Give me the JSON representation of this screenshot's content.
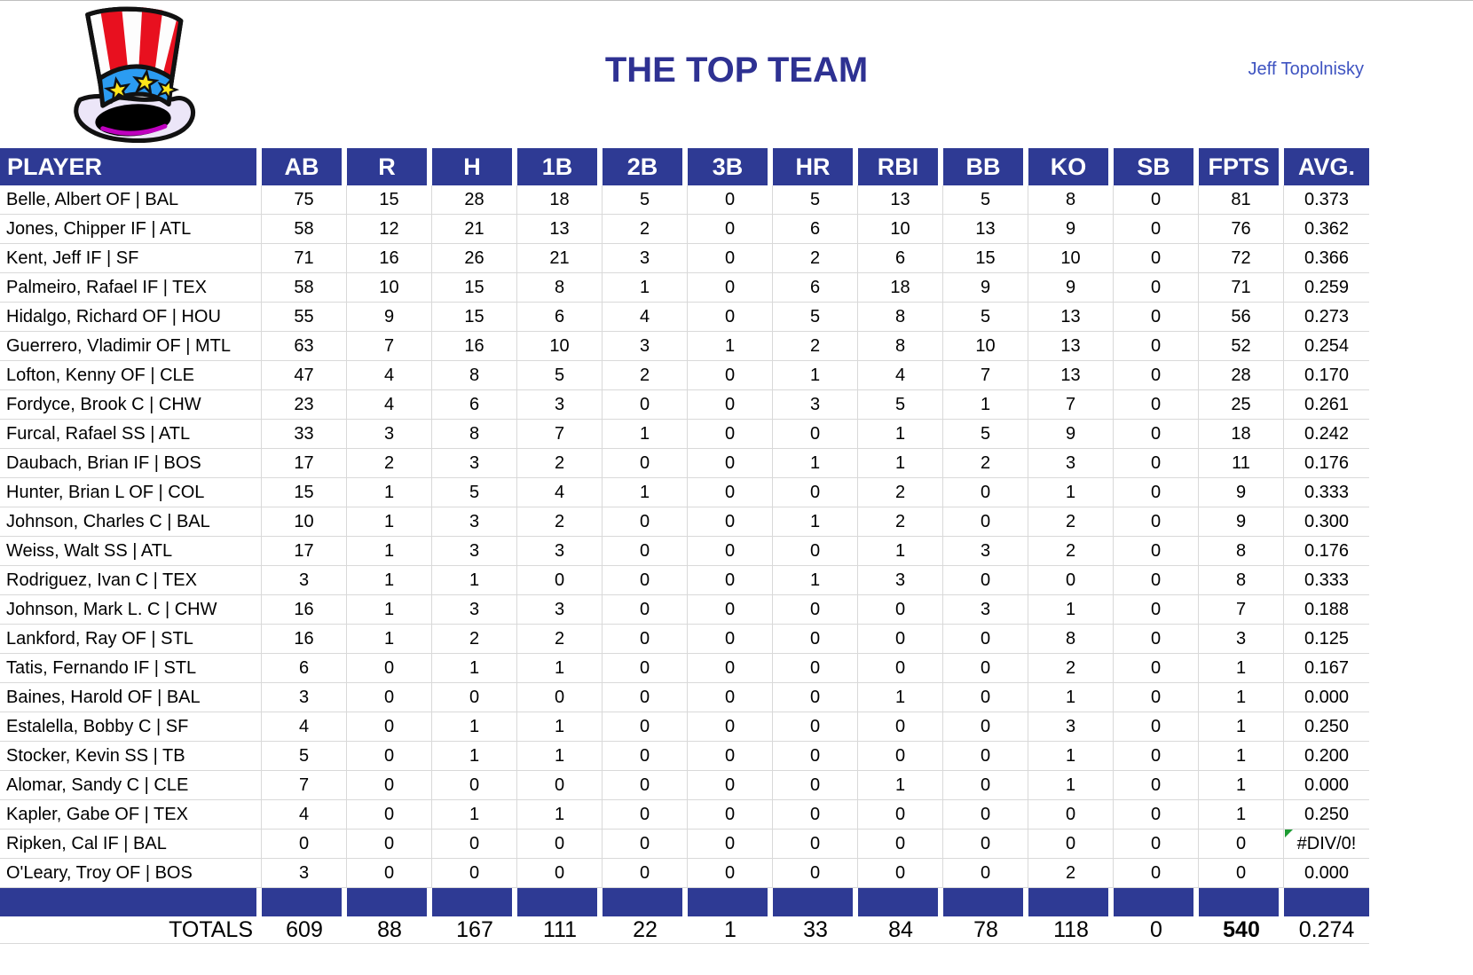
{
  "header": {
    "title": "THE TOP TEAM",
    "owner": "Jeff Topolnisky",
    "logo": "uncle-sam-hat"
  },
  "table": {
    "columns": [
      "PLAYER",
      "AB",
      "R",
      "H",
      "1B",
      "2B",
      "3B",
      "HR",
      "RBI",
      "BB",
      "KO",
      "SB",
      "FPTS",
      "AVG."
    ],
    "rows": [
      [
        "Belle, Albert OF | BAL",
        "75",
        "15",
        "28",
        "18",
        "5",
        "0",
        "5",
        "13",
        "5",
        "8",
        "0",
        "81",
        "0.373"
      ],
      [
        "Jones, Chipper IF | ATL",
        "58",
        "12",
        "21",
        "13",
        "2",
        "0",
        "6",
        "10",
        "13",
        "9",
        "0",
        "76",
        "0.362"
      ],
      [
        "Kent, Jeff IF | SF",
        "71",
        "16",
        "26",
        "21",
        "3",
        "0",
        "2",
        "6",
        "15",
        "10",
        "0",
        "72",
        "0.366"
      ],
      [
        "Palmeiro, Rafael IF | TEX",
        "58",
        "10",
        "15",
        "8",
        "1",
        "0",
        "6",
        "18",
        "9",
        "9",
        "0",
        "71",
        "0.259"
      ],
      [
        "Hidalgo, Richard OF | HOU",
        "55",
        "9",
        "15",
        "6",
        "4",
        "0",
        "5",
        "8",
        "5",
        "13",
        "0",
        "56",
        "0.273"
      ],
      [
        "Guerrero, Vladimir OF | MTL",
        "63",
        "7",
        "16",
        "10",
        "3",
        "1",
        "2",
        "8",
        "10",
        "13",
        "0",
        "52",
        "0.254"
      ],
      [
        "Lofton, Kenny OF | CLE",
        "47",
        "4",
        "8",
        "5",
        "2",
        "0",
        "1",
        "4",
        "7",
        "13",
        "0",
        "28",
        "0.170"
      ],
      [
        "Fordyce, Brook C | CHW",
        "23",
        "4",
        "6",
        "3",
        "0",
        "0",
        "3",
        "5",
        "1",
        "7",
        "0",
        "25",
        "0.261"
      ],
      [
        "Furcal, Rafael SS | ATL",
        "33",
        "3",
        "8",
        "7",
        "1",
        "0",
        "0",
        "1",
        "5",
        "9",
        "0",
        "18",
        "0.242"
      ],
      [
        "Daubach, Brian IF | BOS",
        "17",
        "2",
        "3",
        "2",
        "0",
        "0",
        "1",
        "1",
        "2",
        "3",
        "0",
        "11",
        "0.176"
      ],
      [
        "Hunter, Brian L OF | COL",
        "15",
        "1",
        "5",
        "4",
        "1",
        "0",
        "0",
        "2",
        "0",
        "1",
        "0",
        "9",
        "0.333"
      ],
      [
        "Johnson, Charles C | BAL",
        "10",
        "1",
        "3",
        "2",
        "0",
        "0",
        "1",
        "2",
        "0",
        "2",
        "0",
        "9",
        "0.300"
      ],
      [
        "Weiss, Walt SS | ATL",
        "17",
        "1",
        "3",
        "3",
        "0",
        "0",
        "0",
        "1",
        "3",
        "2",
        "0",
        "8",
        "0.176"
      ],
      [
        "Rodriguez, Ivan C | TEX",
        "3",
        "1",
        "1",
        "0",
        "0",
        "0",
        "1",
        "3",
        "0",
        "0",
        "0",
        "8",
        "0.333"
      ],
      [
        "Johnson, Mark L. C | CHW",
        "16",
        "1",
        "3",
        "3",
        "0",
        "0",
        "0",
        "0",
        "3",
        "1",
        "0",
        "7",
        "0.188"
      ],
      [
        "Lankford, Ray OF | STL",
        "16",
        "1",
        "2",
        "2",
        "0",
        "0",
        "0",
        "0",
        "0",
        "8",
        "0",
        "3",
        "0.125"
      ],
      [
        "Tatis, Fernando IF | STL",
        "6",
        "0",
        "1",
        "1",
        "0",
        "0",
        "0",
        "0",
        "0",
        "2",
        "0",
        "1",
        "0.167"
      ],
      [
        "Baines, Harold OF | BAL",
        "3",
        "0",
        "0",
        "0",
        "0",
        "0",
        "0",
        "1",
        "0",
        "1",
        "0",
        "1",
        "0.000"
      ],
      [
        "Estalella, Bobby C | SF",
        "4",
        "0",
        "1",
        "1",
        "0",
        "0",
        "0",
        "0",
        "0",
        "3",
        "0",
        "1",
        "0.250"
      ],
      [
        "Stocker, Kevin SS | TB",
        "5",
        "0",
        "1",
        "1",
        "0",
        "0",
        "0",
        "0",
        "0",
        "1",
        "0",
        "1",
        "0.200"
      ],
      [
        "Alomar, Sandy C | CLE",
        "7",
        "0",
        "0",
        "0",
        "0",
        "0",
        "0",
        "1",
        "0",
        "1",
        "0",
        "1",
        "0.000"
      ],
      [
        "Kapler, Gabe OF | TEX",
        "4",
        "0",
        "1",
        "1",
        "0",
        "0",
        "0",
        "0",
        "0",
        "0",
        "0",
        "1",
        "0.250"
      ],
      [
        "Ripken, Cal IF | BAL",
        "0",
        "0",
        "0",
        "0",
        "0",
        "0",
        "0",
        "0",
        "0",
        "0",
        "0",
        "0",
        "#DIV/0!"
      ],
      [
        "O'Leary, Troy OF | BOS",
        "3",
        "0",
        "0",
        "0",
        "0",
        "0",
        "0",
        "0",
        "0",
        "2",
        "0",
        "0",
        "0.000"
      ]
    ],
    "totals_label": "TOTALS",
    "totals": [
      "609",
      "88",
      "167",
      "111",
      "22",
      "1",
      "33",
      "84",
      "78",
      "118",
      "0",
      "540",
      "0.274"
    ],
    "bold_total_column": "FPTS",
    "error_value": "#DIV/0!"
  },
  "colors": {
    "header_bg": "#2e3a94",
    "title_color": "#2e3192",
    "owner_color": "#3e53c1",
    "grid": "#d9d9d9",
    "error_flag": "#1d9b33"
  }
}
